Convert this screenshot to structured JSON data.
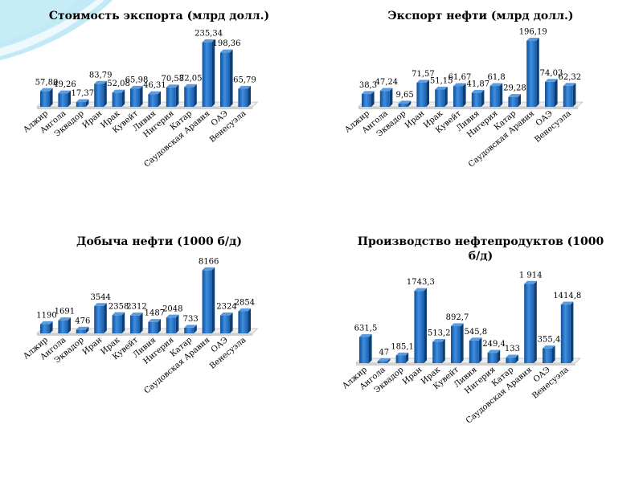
{
  "colors": {
    "bar_front": "#1a66b8",
    "bar_side": "#0d3f75",
    "bar_top": "#5b9be0",
    "floor": "#d9d9d9",
    "wave": "#8fd8ef"
  },
  "chart_data": [
    {
      "type": "bar",
      "title": "Стоимость экспорта (млрд долл.)",
      "categories": [
        "Алжир",
        "Ангола",
        "Эквадор",
        "Иран",
        "Ирак",
        "Кувейт",
        "Ливия",
        "Нигерия",
        "Катар",
        "Саудовская Аравия",
        "ОАЭ",
        "Венесуэла"
      ],
      "values": [
        57.8,
        49.26,
        17.37,
        83.79,
        52.08,
        65.98,
        46.31,
        70.58,
        72.05,
        235.34,
        198.36,
        65.79
      ],
      "value_labels": [
        "57,80",
        "49,26",
        "17,37",
        "83,79",
        "52,08",
        "65,98",
        "46,31",
        "70,58",
        "72,05",
        "235,34",
        "198,36",
        "65,79"
      ],
      "ylim": [
        0,
        240
      ],
      "xlabel": "",
      "ylabel": ""
    },
    {
      "type": "bar",
      "title": "Экспорт нефти (млрд долл.)",
      "categories": [
        "Алжир",
        "Ангола",
        "Эквадор",
        "Иран",
        "Ирак",
        "Кувейт",
        "Ливия",
        "Нигерия",
        "Катар",
        "Саудовская Аравия",
        "ОАЭ",
        "Венесуэла"
      ],
      "values": [
        38.3,
        47.24,
        9.65,
        71.57,
        51.15,
        61.67,
        41.87,
        61.8,
        29.28,
        196.19,
        74.03,
        62.32
      ],
      "value_labels": [
        "38,3",
        "47,24",
        "9,65",
        "71,57",
        "51,15",
        "61,67",
        "41,87",
        "61,8",
        "29,28",
        "196,19",
        "74,03",
        "62,32"
      ],
      "ylim": [
        0,
        200
      ],
      "xlabel": "",
      "ylabel": ""
    },
    {
      "type": "bar",
      "title": "Добыча нефти (1000 б/д)",
      "categories": [
        "Алжир",
        "Ангола",
        "Эквадор",
        "Иран",
        "Ирак",
        "Кувейт",
        "Ливия",
        "Нигерия",
        "Катар",
        "Саудовская Аравия",
        "ОАЭ",
        "Венесуэла"
      ],
      "values": [
        1190,
        1691,
        476,
        3544,
        2358,
        2312,
        1487,
        2048,
        733,
        8166,
        2324,
        2854
      ],
      "value_labels": [
        "1190",
        "1691",
        "476",
        "3544",
        "2358",
        "2312",
        "1487",
        "2048",
        "733",
        "8166",
        "2324",
        "2854"
      ],
      "ylim": [
        0,
        8300
      ],
      "xlabel": "",
      "ylabel": ""
    },
    {
      "type": "bar",
      "title": "Производство нефтепродуктов (1000 б/д)",
      "categories": [
        "Алжир",
        "Ангола",
        "Эквадор",
        "Иран",
        "Ирак",
        "Кувейт",
        "Ливия",
        "Нигерия",
        "Катар",
        "Саудовская Аравия",
        "ОАЭ",
        "Венесуэла"
      ],
      "values": [
        631.5,
        47,
        185.1,
        1743.3,
        513.2,
        892.7,
        545.8,
        249.4,
        133,
        1914,
        355.4,
        1414.8
      ],
      "value_labels": [
        "631,5",
        "47",
        "185,1",
        "1743,3",
        "513,2",
        "892,7",
        "545,8",
        "249,4",
        "133",
        "1 914",
        "355,4",
        "1414,8"
      ],
      "ylim": [
        0,
        1960
      ],
      "xlabel": "",
      "ylabel": ""
    }
  ]
}
